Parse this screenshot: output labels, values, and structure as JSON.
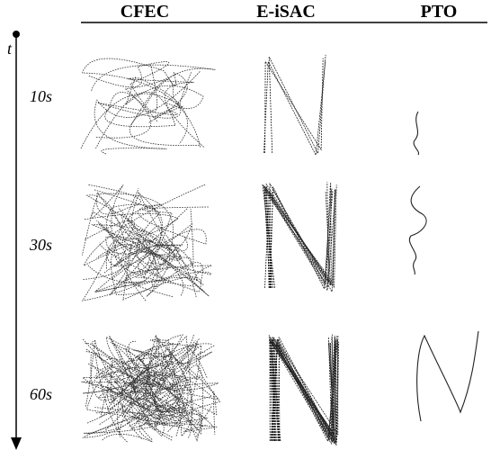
{
  "columns": [
    "CFEC",
    "E-iSAC",
    "PTO"
  ],
  "axis_label": "t",
  "times": [
    "10s",
    "30s",
    "60s"
  ],
  "colors": {
    "ink": "#000000",
    "dotted": "#444444"
  }
}
